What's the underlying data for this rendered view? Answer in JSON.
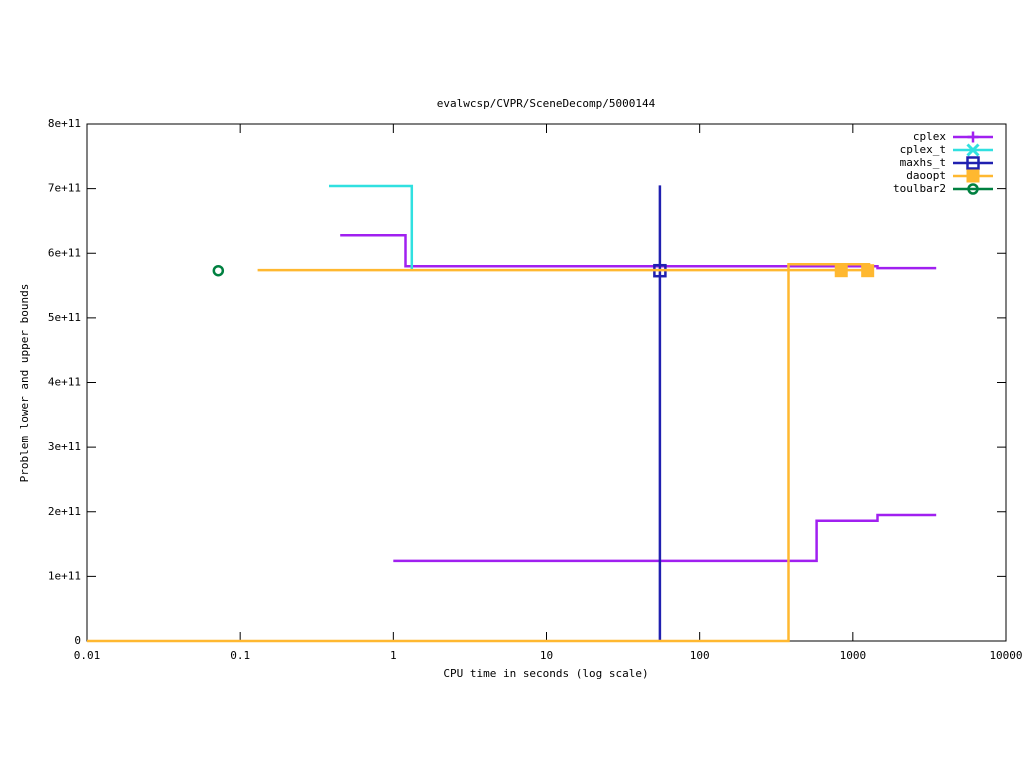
{
  "chart_data": {
    "type": "line",
    "title": "evalwcsp/CVPR/SceneDecomp/5000144",
    "xlabel": "CPU time in seconds (log scale)",
    "ylabel": "Problem lower and upper bounds",
    "xscale": "log",
    "xlim": [
      0.01,
      10000
    ],
    "xticks": [
      0.01,
      0.1,
      1,
      10,
      100,
      1000,
      10000
    ],
    "ylim": [
      0,
      800000000000
    ],
    "yticks": [
      0,
      {
        "value": 100000000000,
        "label": "1e+11"
      },
      {
        "value": 200000000000,
        "label": "2e+11"
      },
      {
        "value": 300000000000,
        "label": "3e+11"
      },
      {
        "value": 400000000000,
        "label": "4e+11"
      },
      {
        "value": 500000000000,
        "label": "5e+11"
      },
      {
        "value": 600000000000,
        "label": "6e+11"
      },
      {
        "value": 700000000000,
        "label": "7e+11"
      },
      {
        "value": 800000000000,
        "label": "8e+11"
      }
    ],
    "legend": "top-right",
    "series": [
      {
        "name": "cplex",
        "color": "#a020f0",
        "marker": "plus",
        "x": [
          0.45,
          1.2,
          1.2,
          1450,
          1450,
          3500,
          null,
          1,
          580,
          580,
          1450,
          1450,
          3500
        ],
        "values": [
          628000000000,
          628000000000,
          580000000000,
          580000000000,
          577000000000,
          577000000000,
          null,
          124000000000,
          124000000000,
          186000000000,
          186000000000,
          195000000000,
          195000000000
        ],
        "marker_x": [],
        "marker_values": []
      },
      {
        "name": "cplex_t",
        "color": "#30e0e0",
        "marker": "cross",
        "x": [
          0.38,
          1.32,
          1.32
        ],
        "values": [
          704000000000,
          704000000000,
          573000000000
        ],
        "marker_x": [],
        "marker_values": []
      },
      {
        "name": "maxhs_t",
        "color": "#2020b0",
        "marker": "square-open",
        "x": [
          55,
          55
        ],
        "values": [
          0,
          705000000000
        ],
        "marker_x": [
          55
        ],
        "marker_values": [
          573000000000
        ]
      },
      {
        "name": "daoopt",
        "color": "#ffb830",
        "marker": "square",
        "x": [
          0.13,
          1300,
          null,
          0.01,
          380,
          380,
          1300
        ],
        "values": [
          574000000000,
          574000000000,
          null,
          0,
          0,
          583000000000,
          583000000000
        ],
        "marker_x": [
          840,
          1250
        ],
        "marker_values": [
          573000000000,
          573000000000
        ]
      },
      {
        "name": "toulbar2",
        "color": "#008040",
        "marker": "circle-open",
        "x": [],
        "values": [],
        "marker_x": [
          0.072
        ],
        "marker_values": [
          573000000000
        ]
      }
    ]
  }
}
